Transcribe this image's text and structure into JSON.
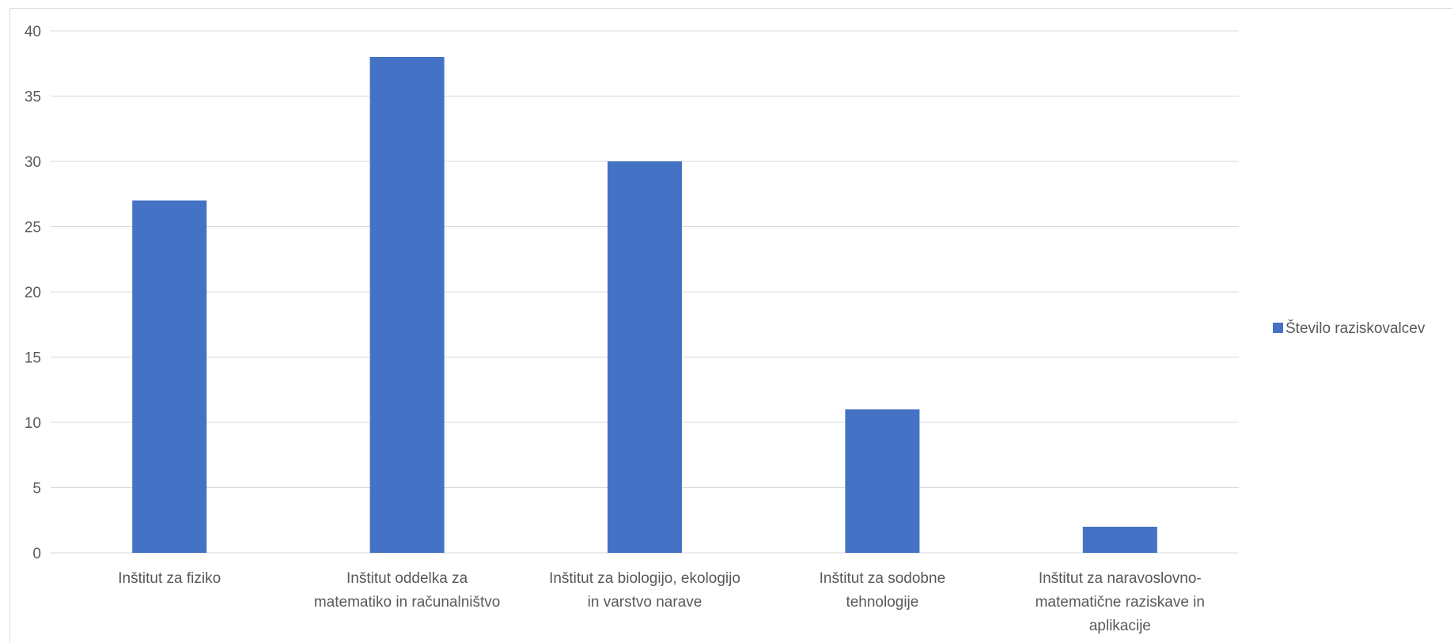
{
  "chart_data": {
    "type": "bar",
    "categories": [
      [
        "Inštitut za fiziko"
      ],
      [
        "Inštitut oddelka za",
        "matematiko in računalništvo"
      ],
      [
        "Inštitut za biologijo, ekologijo",
        "in varstvo narave"
      ],
      [
        "Inštitut za sodobne",
        "tehnologije"
      ],
      [
        "Inštitut za naravoslovno-",
        "matematične raziskave in",
        "aplikacije"
      ]
    ],
    "series": [
      {
        "name": "Število raziskovalcev",
        "values": [
          27,
          38,
          30,
          11,
          2
        ],
        "color": "#4472c4"
      }
    ],
    "yticks": [
      0,
      5,
      10,
      15,
      20,
      25,
      30,
      35,
      40
    ],
    "ylim": [
      0,
      40
    ],
    "grid": true,
    "legend_position": "right"
  }
}
